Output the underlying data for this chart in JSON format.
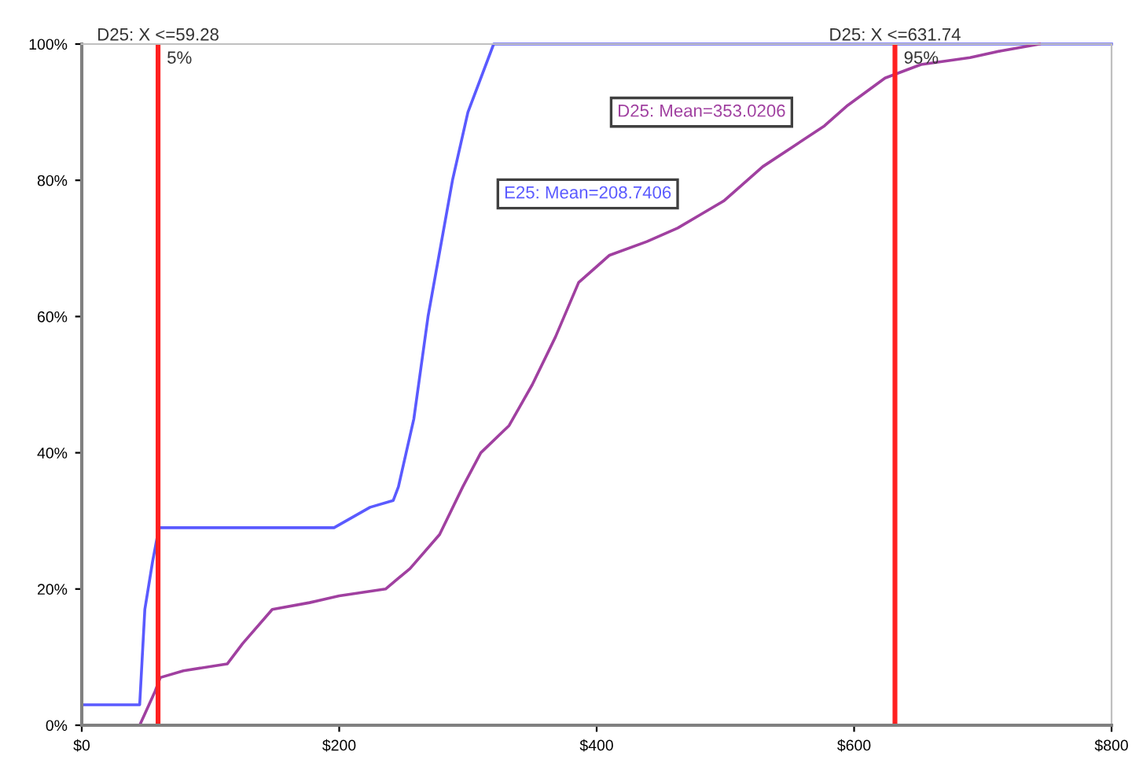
{
  "chart_data": {
    "type": "line",
    "xlim": [
      0,
      800
    ],
    "ylim": [
      0,
      1
    ],
    "xticks": [
      {
        "value": 0,
        "label": "$0"
      },
      {
        "value": 200,
        "label": "$200"
      },
      {
        "value": 400,
        "label": "$400"
      },
      {
        "value": 600,
        "label": "$600"
      },
      {
        "value": 800,
        "label": "$800"
      }
    ],
    "yticks": [
      {
        "value": 0,
        "label": "0%"
      },
      {
        "value": 0.2,
        "label": "20%"
      },
      {
        "value": 0.4,
        "label": "40%"
      },
      {
        "value": 0.6,
        "label": "60%"
      },
      {
        "value": 0.8,
        "label": "80%"
      },
      {
        "value": 1,
        "label": "100%"
      }
    ],
    "grid": false,
    "series": [
      {
        "color": "#5a5aff",
        "x": [
          0,
          45,
          49,
          55,
          60,
          63,
          196,
          224,
          242,
          246,
          258,
          269,
          288,
          300,
          320,
          800
        ],
        "values": [
          0.03,
          0.03,
          0.17,
          0.24,
          0.29,
          0.29,
          0.29,
          0.32,
          0.33,
          0.35,
          0.45,
          0.6,
          0.8,
          0.9,
          1,
          1
        ]
      },
      {
        "color": "#a040a0",
        "x": [
          0,
          45,
          57,
          61,
          79,
          113,
          125,
          148,
          177,
          200,
          236,
          255,
          278,
          296,
          310,
          332,
          350,
          368,
          386,
          410,
          439,
          463,
          481,
          499,
          511,
          529,
          553,
          577,
          595,
          624,
          652,
          690,
          714,
          744
        ],
        "values": [
          0,
          0,
          0.05,
          0.07,
          0.08,
          0.09,
          0.12,
          0.17,
          0.18,
          0.19,
          0.2,
          0.23,
          0.28,
          0.35,
          0.4,
          0.44,
          0.5,
          0.57,
          0.65,
          0.69,
          0.71,
          0.73,
          0.75,
          0.77,
          0.79,
          0.82,
          0.85,
          0.88,
          0.91,
          0.95,
          0.97,
          0.98,
          0.99,
          1
        ]
      }
    ],
    "ref_lines": [
      {
        "axis": "x",
        "value": 59.28,
        "label": "D25: X <=59.28",
        "color": "#ff2020"
      },
      {
        "axis": "x",
        "value": 631.74,
        "label": "D25: X <=631.74",
        "color": "#ff2020"
      }
    ],
    "annotations": [
      {
        "text": "5%",
        "x": 59.28,
        "y": 1
      },
      {
        "text": "95%",
        "x": 631.74,
        "y": 1
      },
      "E25: Mean=208.7406",
      "D25: Mean=353.0206"
    ]
  }
}
